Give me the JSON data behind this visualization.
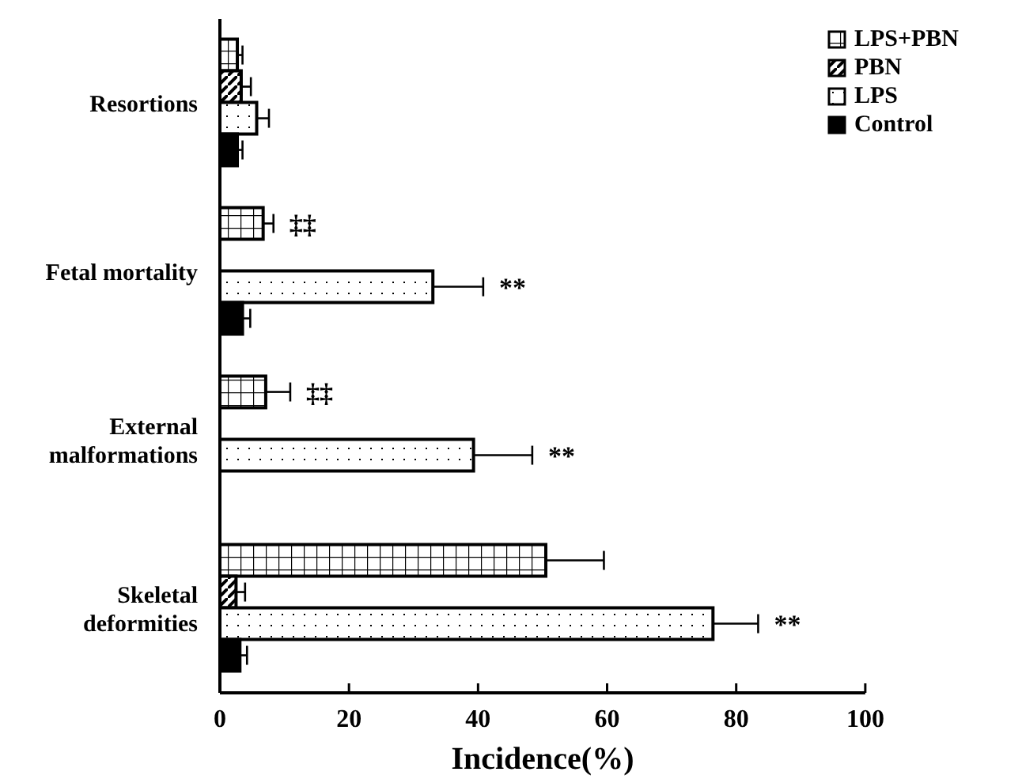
{
  "chart_data": {
    "type": "bar",
    "orientation": "horizontal",
    "xlabel": "Incidence(%)",
    "categories": [
      "Resortions",
      "Fetal mortality",
      "External malformations",
      "Skeletal deformities"
    ],
    "series": [
      {
        "name": "LPS+PBN",
        "color": "#000000",
        "values": [
          2.7,
          6.7,
          7.1,
          50.5
        ],
        "errors": [
          [
            2.7,
            3.5
          ],
          [
            6.7,
            8.3
          ],
          [
            7.1,
            10.9
          ],
          [
            50.5,
            59.5
          ]
        ]
      },
      {
        "name": "PBN",
        "color": "#000000",
        "values": [
          3.3,
          null,
          null,
          2.5
        ],
        "errors": [
          [
            3.3,
            4.8
          ],
          null,
          null,
          [
            2.5,
            3.9
          ]
        ]
      },
      {
        "name": "LPS",
        "color": "#000000",
        "values": [
          5.7,
          33.0,
          39.3,
          76.4
        ],
        "errors": [
          [
            5.7,
            7.6
          ],
          [
            33.0,
            40.8
          ],
          [
            39.3,
            48.4
          ],
          [
            76.4,
            83.4
          ]
        ]
      },
      {
        "name": "Control",
        "color": "#000000",
        "values": [
          2.7,
          3.5,
          null,
          3.1
        ],
        "errors": [
          [
            2.7,
            3.5
          ],
          [
            3.5,
            4.7
          ],
          null,
          [
            3.1,
            4.2
          ]
        ]
      }
    ],
    "xlim": [
      0,
      100
    ],
    "xticks": [
      0,
      20,
      40,
      60,
      80,
      100
    ],
    "grid": false,
    "legend": "top right",
    "annotations": [
      {
        "text": "‡‡",
        "x": 8.3,
        "y": "Fetal mortality"
      },
      {
        "text": "**",
        "x": 40.8,
        "y": "Fetal mortality"
      },
      {
        "text": "‡‡",
        "x": 10.9,
        "y": "External malformations"
      },
      {
        "text": "**",
        "x": 48.4,
        "y": "External malformations"
      },
      {
        "text": "**",
        "x": 83.4,
        "y": "Skeletal deformities"
      }
    ]
  }
}
